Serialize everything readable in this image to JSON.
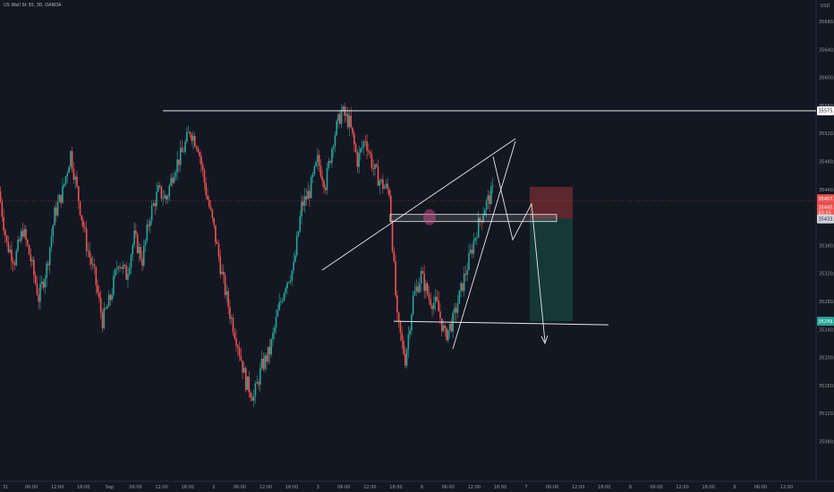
{
  "chart_title": "US Wall St 30, 30, OANDA",
  "currency": "USD",
  "colors": {
    "background": "#131722",
    "up": "#26a69a",
    "down": "#ef5350",
    "drawing": "#e8e8e8",
    "stop_zone": "#6b2a2f",
    "target_zone": "#153a3a",
    "current_price_line": "#ef5350"
  },
  "y_axis": {
    "ticks": [
      "35680.0",
      "35640.0",
      "35600.0",
      "35560.0",
      "35520.0",
      "35480.0",
      "35440.0",
      "35400.0",
      "35360.0",
      "35320.0",
      "35280.0",
      "35240.0",
      "35200.0",
      "35160.0",
      "35120.0",
      "35080.0"
    ]
  },
  "price_tags": {
    "resistance": "35575.7",
    "current": "35457.8",
    "current_sub": "35445.3",
    "current_sub2": "03:55",
    "entry": "35433.8",
    "target": "35299.4"
  },
  "x_axis": {
    "ticks": [
      "31",
      "06:00",
      "12:00",
      "18:00",
      "Sep",
      "06:00",
      "12:00",
      "18:00",
      "2",
      "06:00",
      "12:00",
      "18:00",
      "3",
      "06:00",
      "12:00",
      "18:00",
      "6",
      "06:00",
      "12:00",
      "18:00",
      "7",
      "06:00",
      "12:00",
      "18:00",
      "8",
      "06:00",
      "12:00",
      "18:00",
      "9",
      "06:00",
      "12:00"
    ]
  },
  "chart_data": {
    "type": "candlestick",
    "ylim": [
      35080,
      35700
    ],
    "x_labels": [
      "31",
      "06:00",
      "12:00",
      "18:00",
      "Sep",
      "06:00",
      "12:00",
      "18:00",
      "2",
      "06:00",
      "12:00",
      "18:00",
      "3",
      "06:00",
      "12:00",
      "18:00",
      "6",
      "06:00",
      "12:00",
      "18:00",
      "7",
      "06:00",
      "12:00",
      "18:00",
      "8",
      "06:00",
      "12:00",
      "18:00",
      "9",
      "06:00",
      "12:00"
    ],
    "price_path": [
      35470,
      35400,
      35380,
      35420,
      35380,
      35330,
      35370,
      35440,
      35470,
      35520,
      35460,
      35400,
      35360,
      35300,
      35330,
      35380,
      35360,
      35410,
      35380,
      35440,
      35470,
      35460,
      35500,
      35520,
      35550,
      35530,
      35470,
      35420,
      35360,
      35310,
      35270,
      35220,
      35200,
      35240,
      35260,
      35310,
      35350,
      35370,
      35450,
      35470,
      35510,
      35480,
      35540,
      35575,
      35560,
      35510,
      35540,
      35500,
      35480,
      35470,
      35300,
      35250,
      35330,
      35360,
      35330,
      35320,
      35280,
      35300,
      35340,
      35380,
      35420,
      35450,
      35470
    ],
    "levels": {
      "resistance": 35575.7,
      "current": 35457.8,
      "entry": 35433.8,
      "target": 35299.4
    }
  }
}
